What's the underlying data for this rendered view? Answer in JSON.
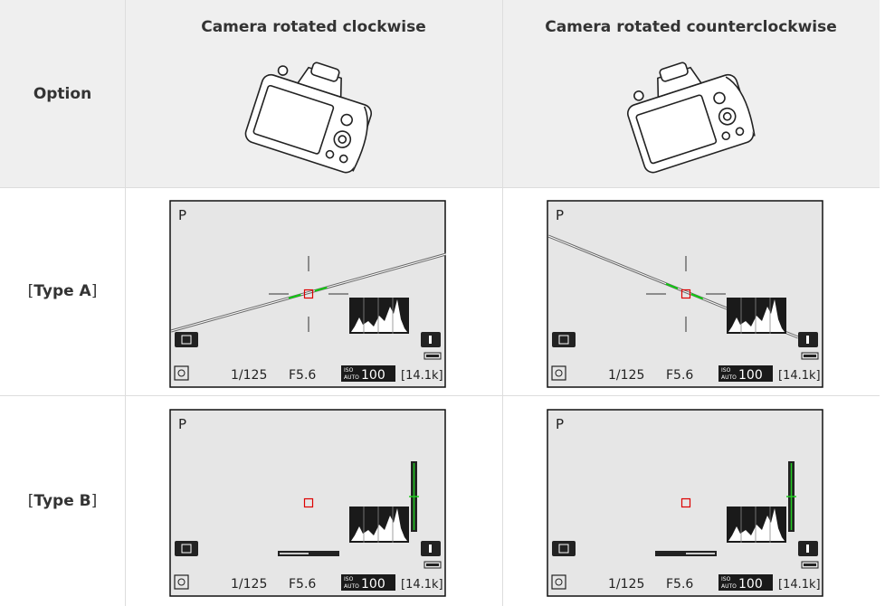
{
  "header": {
    "option": "Option",
    "columns": [
      "Camera rotated clockwise",
      "Camera rotated counterclockwise"
    ]
  },
  "rows": [
    {
      "prefix": "[",
      "name": "Type A",
      "suffix": "]"
    },
    {
      "prefix": "[",
      "name": "Type B",
      "suffix": "]"
    }
  ],
  "screen": {
    "mode": "P",
    "shutter": "1/125",
    "aperture": "F5.6",
    "iso_top": "ISO",
    "iso_bottom": "AUTO",
    "iso": "100",
    "remaining": "[14.1k]"
  }
}
